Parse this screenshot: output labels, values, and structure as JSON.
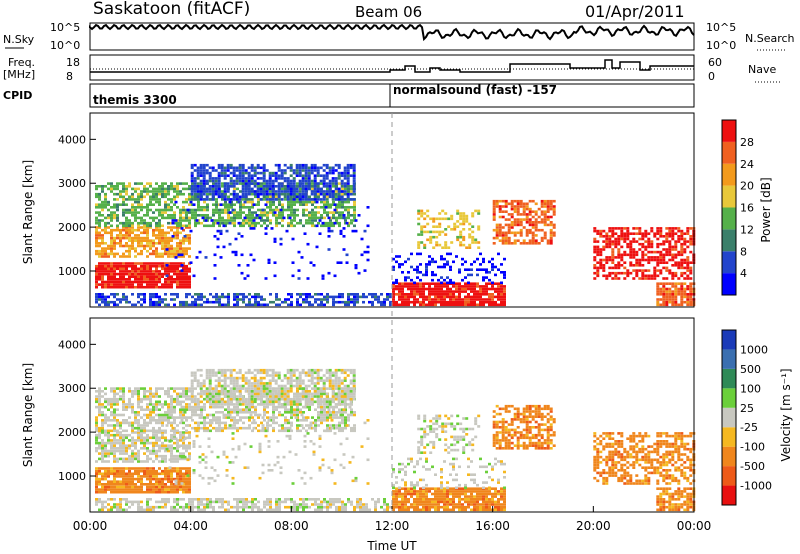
{
  "header": {
    "title": "Saskatoon (fitACF)",
    "beam": "Beam 06",
    "date": "01/Apr/2011"
  },
  "top_panels": {
    "nsky_label": "N.Sky",
    "nsky_ticks": [
      "10^5",
      "10^0"
    ],
    "nsearch_label": "N.Search",
    "nsearch_ticks": [
      "10^5",
      "10^0"
    ],
    "freq_label_1": "Freq.",
    "freq_label_2": "[MHz]",
    "freq_ticks": [
      "18",
      "8"
    ],
    "nave_label": "Nave",
    "nave_ticks": [
      "60",
      "0"
    ],
    "cpid_label": "CPID",
    "cpid_segments": [
      "themis 3300",
      "normalsound (fast) -157"
    ]
  },
  "chart_data": [
    {
      "type": "heatmap",
      "name": "power",
      "ylabel": "Slant Range [km]",
      "ylim": [
        180,
        4600
      ],
      "yticks": [
        "1000",
        "2000",
        "3000",
        "4000"
      ],
      "colorbar_label": "Power [dB]",
      "colorbar_ticks": [
        "4",
        "8",
        "12",
        "16",
        "20",
        "24",
        "28"
      ],
      "colors": [
        "#0000ff",
        "#2244cc",
        "#3a7f6a",
        "#55b04a",
        "#e8c83a",
        "#f39a1c",
        "#f06020",
        "#ee1010"
      ]
    },
    {
      "type": "heatmap",
      "name": "velocity",
      "xlabel": "Time UT",
      "xticks": [
        "00:00",
        "04:00",
        "08:00",
        "12:00",
        "16:00",
        "20:00",
        "00:00"
      ],
      "ylabel": "Slant Range [km]",
      "ylim": [
        180,
        4600
      ],
      "yticks": [
        "1000",
        "2000",
        "3000",
        "4000"
      ],
      "colorbar_label": "Velocity [m s⁻¹]",
      "colorbar_ticks": [
        "1000",
        "500",
        "100",
        "25",
        "-25",
        "-100",
        "-500",
        "-1000"
      ],
      "colors": [
        "#1a3ab8",
        "#3a6fb0",
        "#2f8a57",
        "#6bcf3a",
        "#c8c8c0",
        "#f5b820",
        "#f0861c",
        "#ee5a18",
        "#e81010"
      ]
    }
  ]
}
